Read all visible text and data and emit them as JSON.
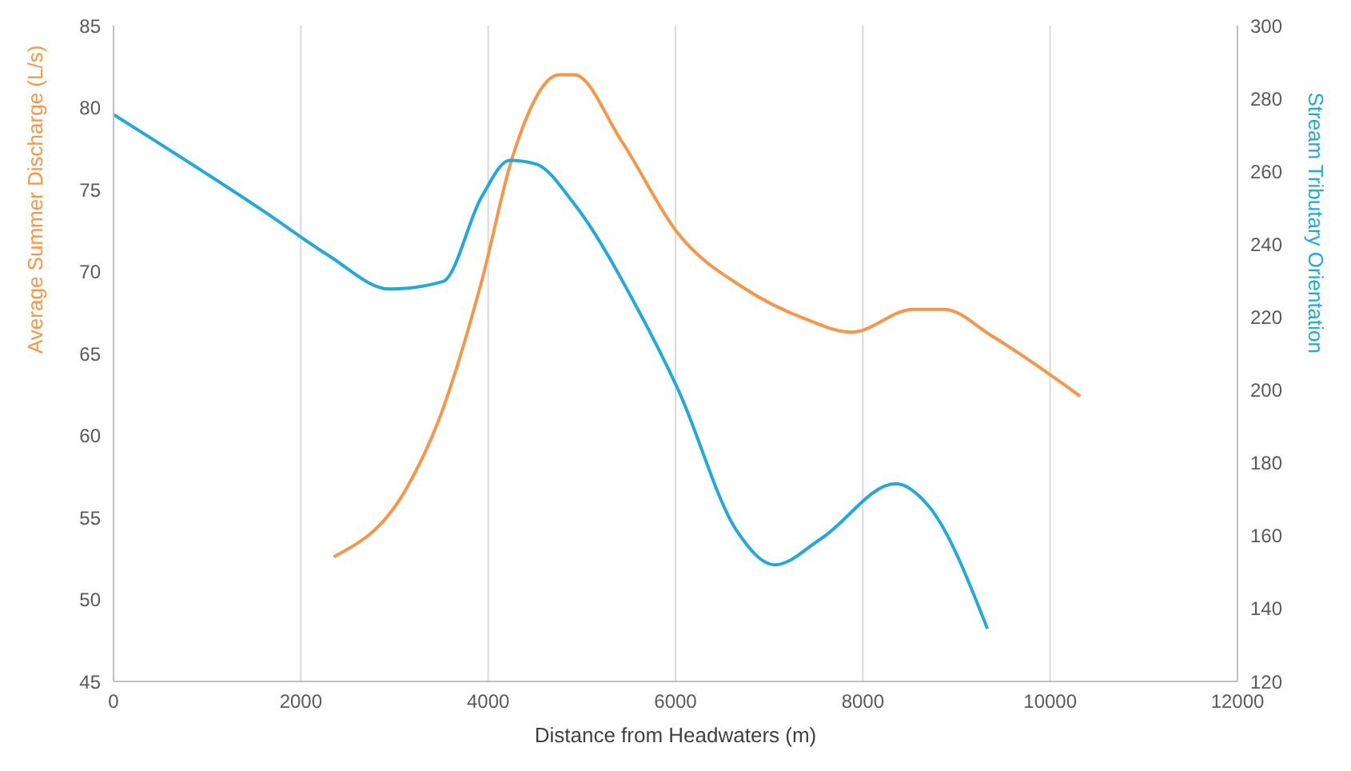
{
  "chart_data": {
    "type": "line",
    "xlabel": "Distance from Headwaters (m)",
    "ylabel": "Average Summer Discharge (L/s)",
    "y2label": "Stream Tributary Orientation",
    "xlim": [
      0,
      12000
    ],
    "xticks": [
      0,
      2000,
      4000,
      6000,
      8000,
      10000,
      12000
    ],
    "ylim": [
      45,
      85
    ],
    "yticks": [
      45,
      50,
      55,
      60,
      65,
      70,
      75,
      80,
      85
    ],
    "y2lim": [
      120,
      300
    ],
    "y2ticks": [
      120,
      140,
      160,
      180,
      200,
      220,
      240,
      260,
      280,
      300
    ],
    "grid": "x",
    "legend": false,
    "marker": "none",
    "line_style": "solid",
    "series": [
      {
        "color": "#f79646",
        "x": [
          2350,
          3110,
          3470,
          3930,
          4260,
          4760,
          4920,
          5420,
          6030,
          6730,
          7390,
          7880,
          8540,
          8870,
          9370,
          10320
        ],
        "values": [
          52.6,
          56.6,
          60.9,
          69.4,
          77.0,
          82.0,
          82.0,
          78.0,
          72.3,
          69.0,
          67.1,
          66.3,
          67.7,
          67.7,
          66.1,
          62.4
        ]
      },
      {
        "color": "#1fa9dc",
        "axis": "y2",
        "x": [
          0,
          1630,
          2290,
          2950,
          3520,
          3930,
          4230,
          4510,
          4920,
          5580,
          6030,
          6650,
          7060,
          7560,
          8350,
          8710,
          9330
        ],
        "values": [
          275.6,
          248.6,
          237,
          227.7,
          229.8,
          253,
          263,
          262,
          251,
          223,
          200,
          161.5,
          152,
          159.3,
          174.3,
          167.9,
          134.5
        ]
      }
    ]
  }
}
